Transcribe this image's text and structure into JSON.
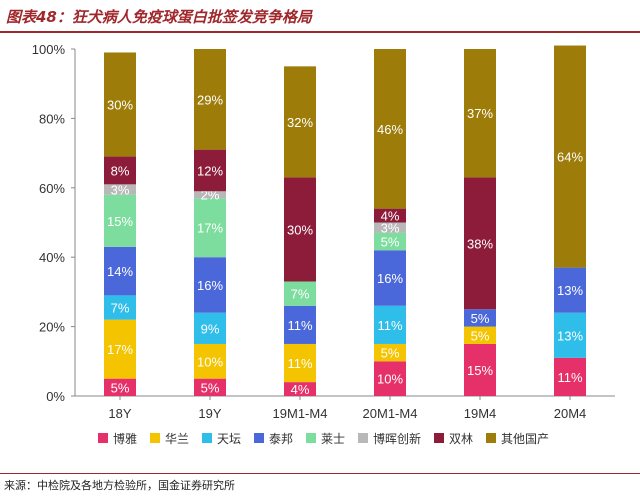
{
  "header": {
    "title": "图表48：狂犬病人免疫球蛋白批签发竞争格局"
  },
  "footer": {
    "source": "来源：中检院及各地方检验所，国金证券研究所"
  },
  "chart_data": {
    "type": "bar",
    "stacked": true,
    "categories": [
      "18Y",
      "19Y",
      "19M1-M4",
      "20M1-M4",
      "19M4",
      "20M4"
    ],
    "ylim": [
      0,
      100
    ],
    "yticks": [
      "0%",
      "20%",
      "40%",
      "60%",
      "80%",
      "100%"
    ],
    "grid": false,
    "legend_position": "bottom",
    "series": [
      {
        "name": "博雅",
        "color": "#e6306a",
        "values": [
          5,
          5,
          4,
          10,
          15,
          11
        ],
        "labels": [
          "5%",
          "5%",
          "4%",
          "10%",
          "15%",
          "11%"
        ]
      },
      {
        "name": "华兰",
        "color": "#f5c400",
        "values": [
          17,
          10,
          11,
          5,
          5,
          0
        ],
        "labels": [
          "17%",
          "10%",
          "11%",
          "5%",
          "5%",
          ""
        ]
      },
      {
        "name": "天坛",
        "color": "#2fbdea",
        "values": [
          7,
          9,
          0,
          11,
          0,
          13
        ],
        "labels": [
          "7%",
          "9%",
          "",
          "11%",
          "",
          "13%"
        ]
      },
      {
        "name": "泰邦",
        "color": "#4a68da",
        "values": [
          14,
          16,
          11,
          16,
          5,
          13
        ],
        "labels": [
          "14%",
          "16%",
          "11%",
          "16%",
          "5%",
          "13%"
        ]
      },
      {
        "name": "莱士",
        "color": "#7ddd9e",
        "values": [
          15,
          17,
          7,
          5,
          0,
          0
        ],
        "labels": [
          "15%",
          "17%",
          "7%",
          "5%",
          "",
          ""
        ]
      },
      {
        "name": "博晖创新",
        "color": "#b8b8b8",
        "values": [
          3,
          2,
          0,
          3,
          0,
          0
        ],
        "labels": [
          "3%",
          "2%",
          "",
          "3%",
          "",
          ""
        ]
      },
      {
        "name": "双林",
        "color": "#8c1c3a",
        "values": [
          8,
          12,
          30,
          4,
          38,
          0
        ],
        "labels": [
          "8%",
          "12%",
          "30%",
          "4%",
          "38%",
          ""
        ]
      },
      {
        "name": "其他国产",
        "color": "#9e7c0a",
        "values": [
          30,
          29,
          32,
          46,
          37,
          64
        ],
        "labels": [
          "30%",
          "29%",
          "32%",
          "46%",
          "37%",
          "64%"
        ]
      }
    ]
  }
}
